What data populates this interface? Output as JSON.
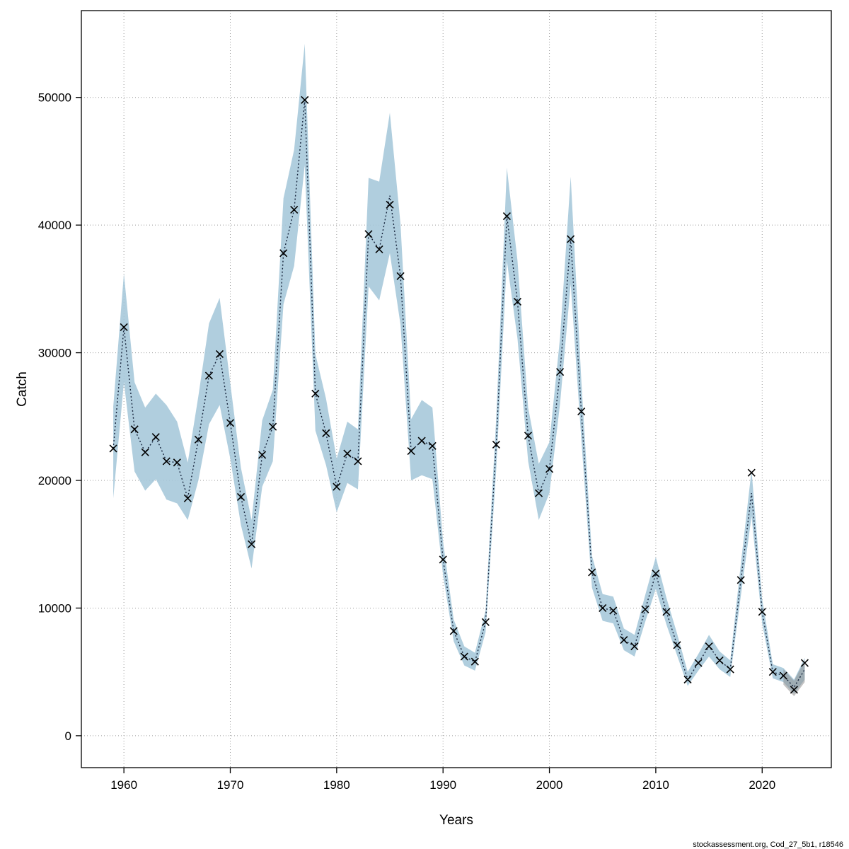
{
  "footer": {
    "text": "stockassessment.org, Cod_27_5b1, r18546"
  },
  "chart_data": {
    "type": "line",
    "title": "",
    "xlabel": "Years",
    "ylabel": "Catch",
    "grid": true,
    "legend_position": "none",
    "xlim": [
      1956,
      2026.5
    ],
    "ylim": [
      -2500,
      56800
    ],
    "x_ticks": [
      1960,
      1970,
      1980,
      1990,
      2000,
      2010,
      2020
    ],
    "y_ticks": [
      0,
      10000,
      20000,
      30000,
      40000,
      50000
    ],
    "band_color": "#a5c7da",
    "forecast_band_color": "#8f8f8f",
    "line_color": "#16243c",
    "marker_color": "#000000",
    "years": [
      1959,
      1960,
      1961,
      1962,
      1963,
      1964,
      1965,
      1966,
      1967,
      1968,
      1969,
      1970,
      1971,
      1972,
      1973,
      1974,
      1975,
      1976,
      1977,
      1978,
      1979,
      1980,
      1981,
      1982,
      1983,
      1984,
      1985,
      1986,
      1987,
      1988,
      1989,
      1990,
      1991,
      1992,
      1993,
      1994,
      1995,
      1996,
      1997,
      1998,
      1999,
      2000,
      2001,
      2002,
      2003,
      2004,
      2005,
      2006,
      2007,
      2008,
      2009,
      2010,
      2011,
      2012,
      2013,
      2014,
      2015,
      2016,
      2017,
      2018,
      2019,
      2020,
      2021,
      2022,
      2023,
      2024
    ],
    "catch_observed": [
      22500,
      32000,
      24000,
      22200,
      23400,
      21500,
      21400,
      18600,
      23200,
      28200,
      29900,
      24500,
      18700,
      15000,
      22000,
      24200,
      37800,
      41200,
      49800,
      26800,
      23700,
      19500,
      22100,
      21500,
      39300,
      38100,
      41600,
      36000,
      22300,
      23100,
      22700,
      13800,
      8200,
      6200,
      5800,
      8900,
      22800,
      40700,
      34000,
      23500,
      19000,
      20900,
      28500,
      38900,
      25400,
      12800,
      10000,
      9800,
      7500,
      7000,
      9900,
      12700,
      9700,
      7100,
      4400,
      5700,
      7000,
      5900,
      5200,
      12200,
      20600,
      9700,
      5000,
      4700,
      3600,
      5700
    ],
    "fit": [
      22500,
      32000,
      24000,
      22200,
      23400,
      21500,
      21400,
      18600,
      23200,
      28200,
      29900,
      24500,
      18700,
      15000,
      22000,
      24200,
      37800,
      41200,
      49800,
      26800,
      23700,
      19500,
      22100,
      21500,
      39300,
      38100,
      42300,
      36000,
      22300,
      23100,
      22700,
      13800,
      8200,
      6200,
      5800,
      8900,
      22800,
      40700,
      34000,
      23500,
      19000,
      20900,
      28500,
      38900,
      25400,
      12800,
      10000,
      9800,
      7500,
      7000,
      9900,
      12700,
      9700,
      7100,
      4400,
      5700,
      7000,
      5900,
      5200,
      12200,
      19000,
      9700,
      5000,
      4700,
      3800,
      5200
    ],
    "ci_lo": [
      18600,
      27700,
      20700,
      19200,
      20100,
      18500,
      18200,
      16900,
      20000,
      24400,
      25900,
      21700,
      16500,
      13100,
      19500,
      21500,
      33800,
      36800,
      44700,
      23900,
      21200,
      17500,
      19800,
      19300,
      35200,
      34100,
      37800,
      32200,
      20000,
      20400,
      20100,
      12600,
      7400,
      5500,
      5100,
      8100,
      20900,
      37200,
      31100,
      21500,
      16900,
      19000,
      26000,
      35400,
      23200,
      11600,
      9000,
      8800,
      6700,
      6200,
      8900,
      11500,
      8700,
      6300,
      3900,
      5100,
      6200,
      5200,
      4600,
      11000,
      17200,
      8800,
      4500,
      4200,
      3300,
      4400
    ],
    "ci_hi": [
      25800,
      36200,
      27700,
      25700,
      26800,
      25900,
      24600,
      21400,
      26600,
      32300,
      34300,
      27600,
      21000,
      16900,
      24700,
      27100,
      42100,
      45900,
      54200,
      29900,
      26400,
      21700,
      24600,
      24000,
      43700,
      43400,
      48800,
      40100,
      24800,
      26300,
      25700,
      15200,
      9100,
      7000,
      6500,
      9800,
      24900,
      44500,
      37200,
      25700,
      21300,
      23000,
      31200,
      43800,
      27800,
      14100,
      11100,
      10900,
      8400,
      7900,
      11000,
      14000,
      10800,
      8000,
      5000,
      6400,
      7900,
      6600,
      5900,
      13500,
      20800,
      10700,
      5600,
      5300,
      4400,
      6100
    ],
    "forecast_band": {
      "years": [
        2022,
        2023,
        2024
      ],
      "lo": [
        4000,
        3100,
        4200
      ],
      "hi": [
        5200,
        4300,
        5900
      ]
    }
  }
}
